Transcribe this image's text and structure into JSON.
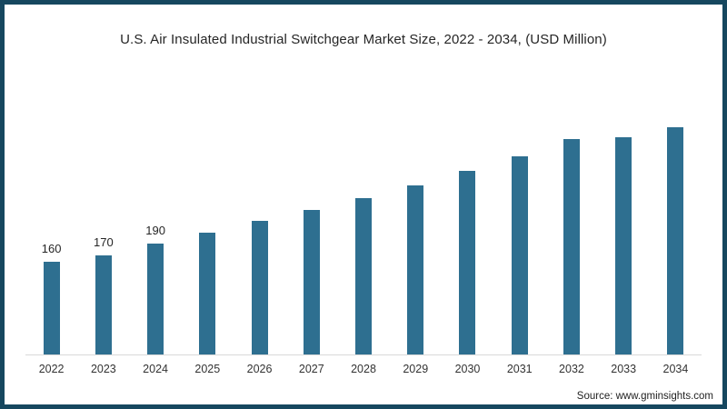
{
  "chart_data": {
    "type": "bar",
    "title": "U.S. Air Insulated Industrial Switchgear Market Size, 2022 - 2034,  (USD Million)",
    "categories": [
      "2022",
      "2023",
      "2024",
      "2025",
      "2026",
      "2027",
      "2028",
      "2029",
      "2030",
      "2031",
      "2032",
      "2033",
      "2034"
    ],
    "values": [
      160,
      170,
      190,
      210,
      229,
      248,
      269,
      291,
      315,
      340,
      370,
      374,
      390
    ],
    "data_labels": [
      "160",
      "170",
      "190",
      "",
      "",
      "",
      "",
      "",
      "",
      "",
      "",
      "",
      ""
    ],
    "xlabel": "",
    "ylabel": "",
    "ylim": [
      0,
      420
    ],
    "grid": false,
    "legend": false,
    "bar_color": "#2e6f90"
  },
  "source": "Source: www.gminsights.com",
  "colors": {
    "frame_border": "#16475f",
    "background": "#ffffff",
    "axis_line": "#d9d9d9",
    "title_text": "#262626",
    "tick_text": "#333333",
    "source_text": "#222222"
  }
}
